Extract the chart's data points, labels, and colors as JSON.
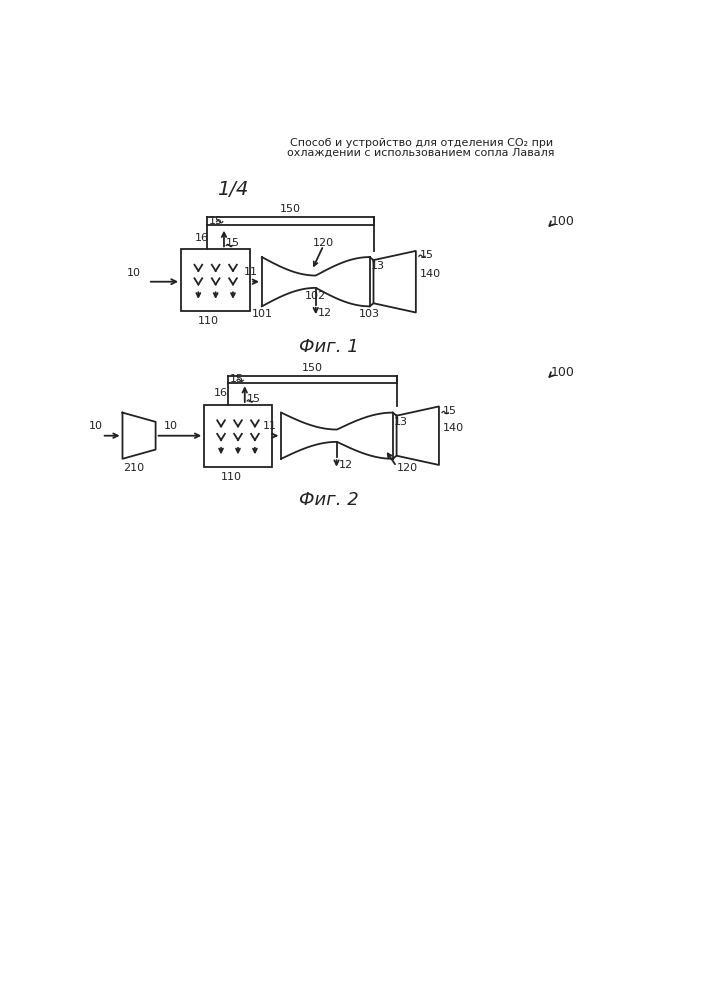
{
  "title_line1": "Способ и устройство для отделения CO₂ при",
  "title_line2": "охлаждении с использованием сопла Лаваля",
  "page_label": "1/4",
  "fig1_label": "Фиг. 1",
  "fig2_label": "Фиг. 2",
  "bg_color": "#ffffff",
  "line_color": "#222222",
  "text_color": "#222222"
}
